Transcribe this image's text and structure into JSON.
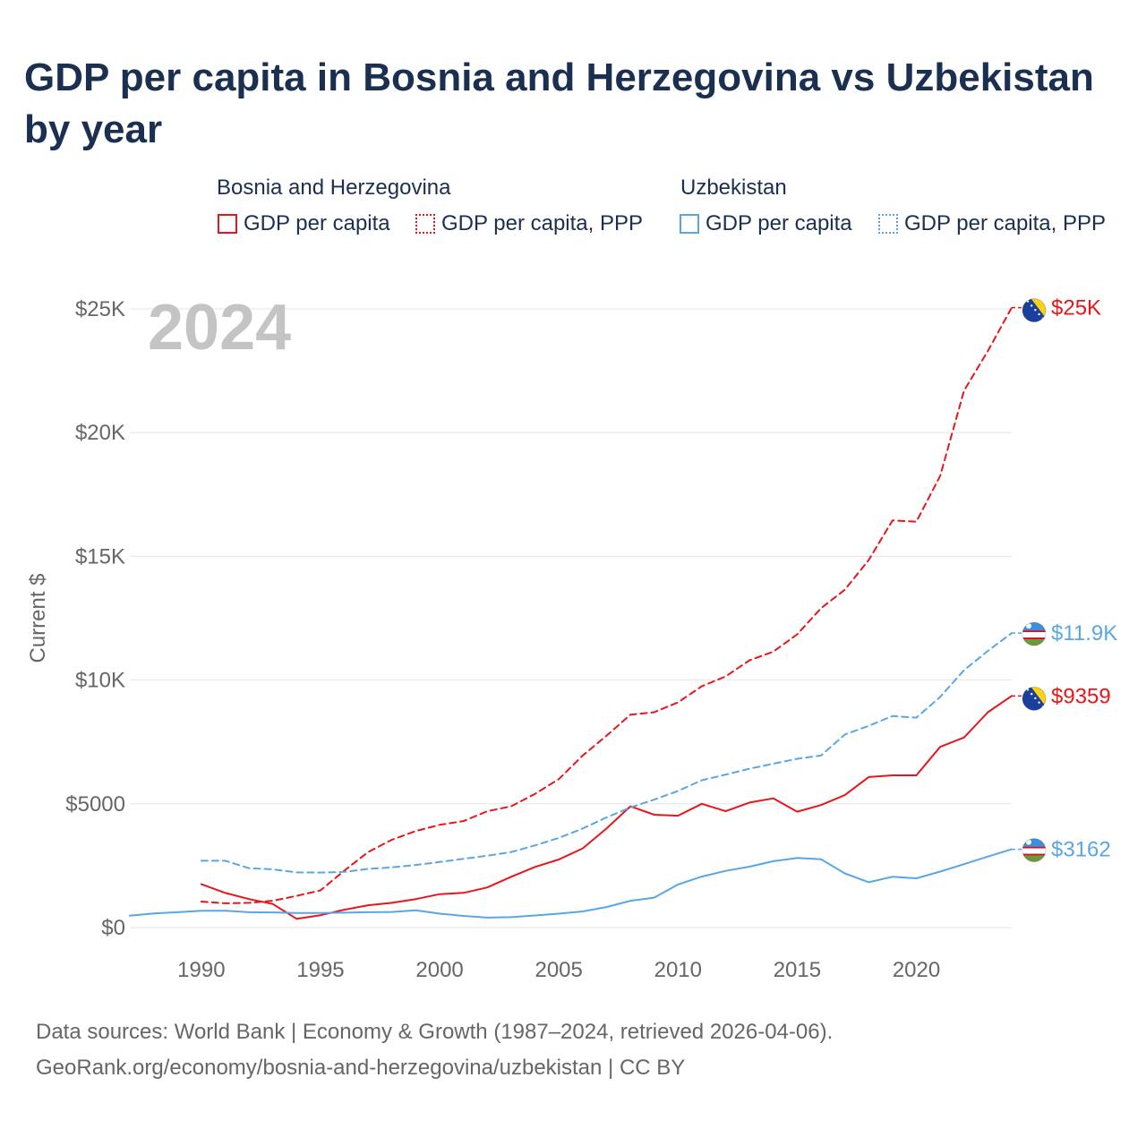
{
  "title": "GDP per capita in Bosnia and Herzegovina vs Uzbekistan by year",
  "legend": {
    "group1": {
      "title": "Bosnia and Herzegovina",
      "item1": "GDP per capita",
      "item2": "GDP per capita, PPP",
      "color": "#e8161b"
    },
    "group2": {
      "title": "Uzbekistan",
      "item1": "GDP per capita",
      "item2": "GDP per capita, PPP",
      "color": "#5aa6e4"
    }
  },
  "year_label": "2024",
  "footer": {
    "line1": "Data sources: World Bank | Economy & Growth (1987–2024, retrieved 2026-04-06).",
    "line2": "GeoRank.org/economy/bosnia-and-herzegovina/uzbekistan | CC BY"
  },
  "chart_data": {
    "type": "line",
    "title": "GDP per capita in Bosnia and Herzegovina vs Uzbekistan by year",
    "xlabel": "",
    "ylabel": "Current $",
    "xlim": [
      1987,
      2024
    ],
    "ylim": [
      0,
      25000
    ],
    "x_ticks": [
      1990,
      1995,
      2000,
      2005,
      2010,
      2015,
      2020
    ],
    "x_tick_labels": [
      "1990",
      "1995",
      "2000",
      "2005",
      "2010",
      "2015",
      "2020"
    ],
    "y_ticks": [
      0,
      5000,
      10000,
      15000,
      20000,
      25000
    ],
    "y_tick_labels": [
      "$0",
      "$5000",
      "$10K",
      "$15K",
      "$20K",
      "$25K"
    ],
    "grid": true,
    "series": [
      {
        "name": "Bosnia and Herzegovina — GDP per capita",
        "color": "#e8161b",
        "dash": "solid",
        "end_label": "$9359",
        "x": [
          1990,
          1991,
          1992,
          1993,
          1994,
          1995,
          1996,
          1997,
          1998,
          1999,
          2000,
          2001,
          2002,
          2003,
          2004,
          2005,
          2006,
          2007,
          2008,
          2009,
          2010,
          2011,
          2012,
          2013,
          2014,
          2015,
          2016,
          2017,
          2018,
          2019,
          2020,
          2021,
          2022,
          2023,
          2024
        ],
        "values": [
          1750,
          1400,
          1150,
          950,
          350,
          500,
          720,
          900,
          1000,
          1150,
          1350,
          1400,
          1620,
          2050,
          2450,
          2750,
          3200,
          4000,
          4900,
          4560,
          4520,
          5000,
          4700,
          5050,
          5220,
          4680,
          4950,
          5350,
          6080,
          6150,
          6150,
          7300,
          7680,
          8700,
          9359
        ]
      },
      {
        "name": "Bosnia and Herzegovina — GDP per capita, PPP",
        "color": "#e8161b",
        "dash": "dashed",
        "end_label": "$25K",
        "x": [
          1990,
          1991,
          1992,
          1993,
          1994,
          1995,
          1996,
          1997,
          1998,
          1999,
          2000,
          2001,
          2002,
          2003,
          2004,
          2005,
          2006,
          2007,
          2008,
          2009,
          2010,
          2011,
          2012,
          2013,
          2014,
          2015,
          2016,
          2017,
          2018,
          2019,
          2020,
          2021,
          2022,
          2023,
          2024
        ],
        "values": [
          1050,
          980,
          1000,
          1080,
          1280,
          1500,
          2300,
          3050,
          3550,
          3900,
          4150,
          4300,
          4700,
          4900,
          5400,
          6000,
          6950,
          7750,
          8600,
          8700,
          9100,
          9750,
          10150,
          10800,
          11150,
          11850,
          12900,
          13650,
          14850,
          16450,
          16400,
          18250,
          21700,
          23300,
          25050
        ]
      },
      {
        "name": "Uzbekistan — GDP per capita",
        "color": "#5aa6e4",
        "dash": "solid",
        "end_label": "$3162",
        "x": [
          1987,
          1988,
          1989,
          1990,
          1991,
          1992,
          1993,
          1994,
          1995,
          1996,
          1997,
          1998,
          1999,
          2000,
          2001,
          2002,
          2003,
          2004,
          2005,
          2006,
          2007,
          2008,
          2009,
          2010,
          2011,
          2012,
          2013,
          2014,
          2015,
          2016,
          2017,
          2018,
          2019,
          2020,
          2021,
          2022,
          2023,
          2024
        ],
        "values": [
          480,
          570,
          620,
          680,
          680,
          620,
          610,
          590,
          590,
          600,
          620,
          630,
          700,
          560,
          470,
          400,
          420,
          490,
          560,
          650,
          830,
          1080,
          1210,
          1740,
          2060,
          2290,
          2460,
          2680,
          2810,
          2760,
          2190,
          1830,
          2050,
          1990,
          2260,
          2560,
          2870,
          3162
        ]
      },
      {
        "name": "Uzbekistan — GDP per capita, PPP",
        "color": "#5aa6e4",
        "dash": "dashed",
        "end_label": "$11.9K",
        "x": [
          1990,
          1991,
          1992,
          1993,
          1994,
          1995,
          1996,
          1997,
          1998,
          1999,
          2000,
          2001,
          2002,
          2003,
          2004,
          2005,
          2006,
          2007,
          2008,
          2009,
          2010,
          2011,
          2012,
          2013,
          2014,
          2015,
          2016,
          2017,
          2018,
          2019,
          2020,
          2021,
          2022,
          2023,
          2024
        ],
        "values": [
          2700,
          2700,
          2400,
          2350,
          2230,
          2220,
          2250,
          2370,
          2430,
          2530,
          2650,
          2780,
          2900,
          3050,
          3320,
          3620,
          4000,
          4450,
          4850,
          5170,
          5520,
          5950,
          6180,
          6420,
          6620,
          6820,
          6950,
          7800,
          8150,
          8550,
          8480,
          9320,
          10400,
          11180,
          11900
        ]
      }
    ]
  }
}
